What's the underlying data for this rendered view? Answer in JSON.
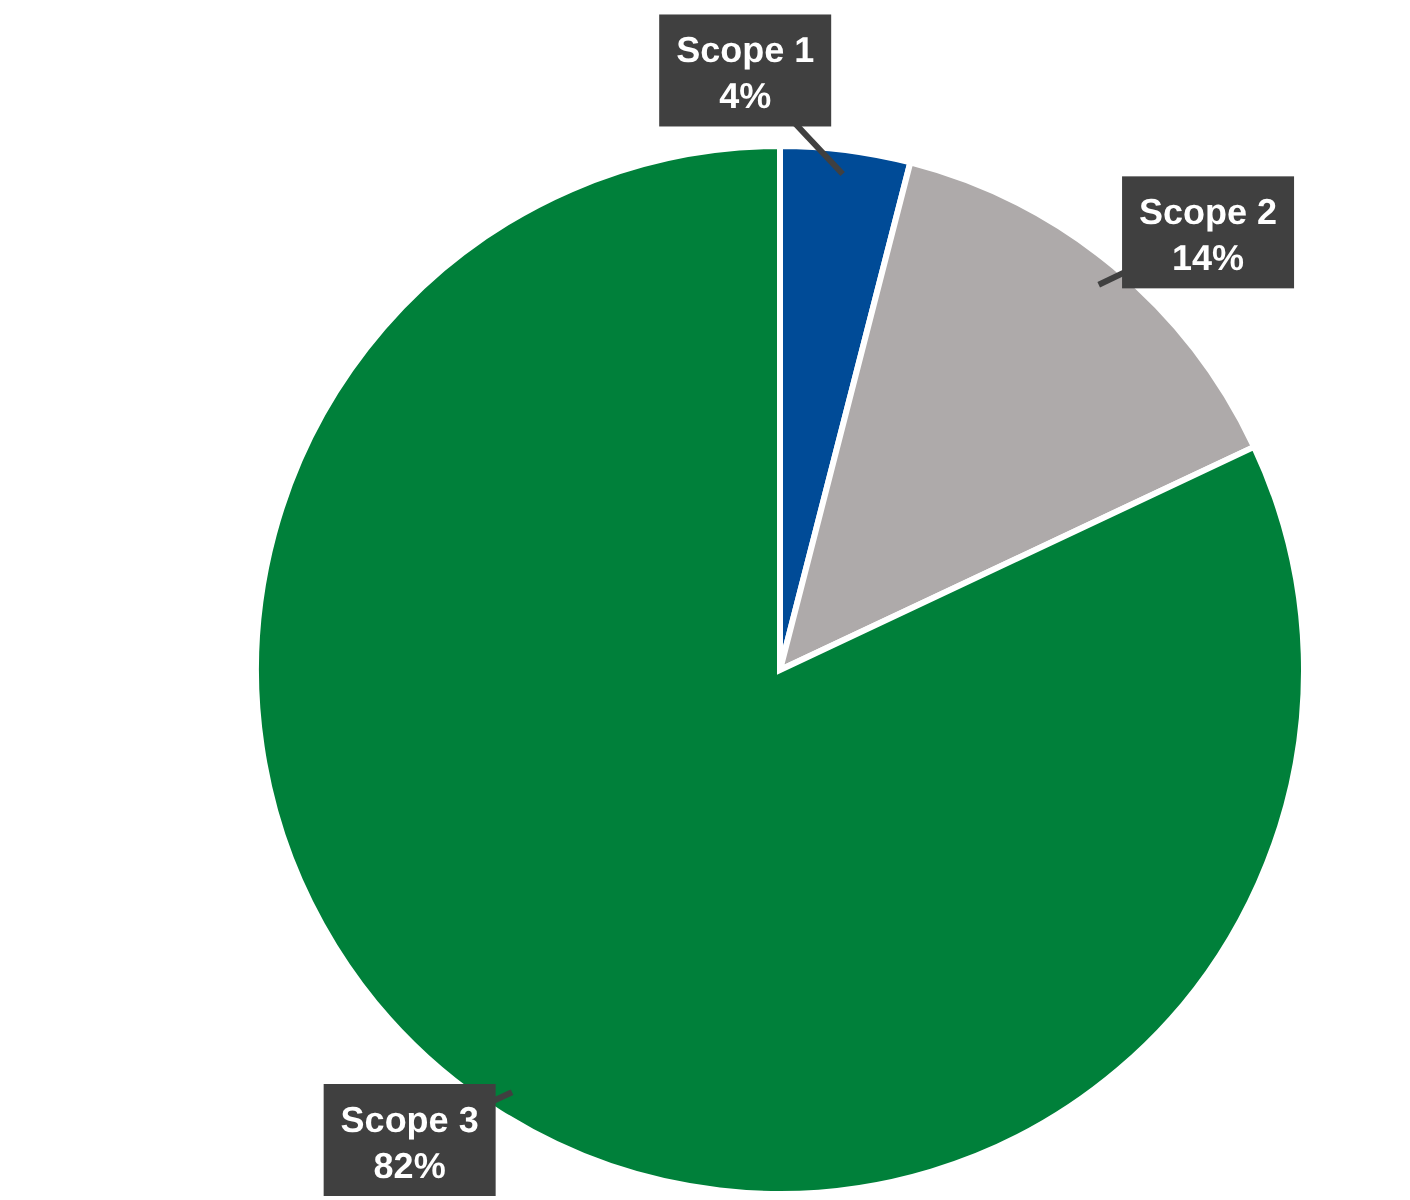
{
  "chart_data": {
    "type": "pie",
    "categories": [
      "Scope 1",
      "Scope 2",
      "Scope 3"
    ],
    "values": [
      4,
      14,
      82
    ],
    "colors": [
      "#004b97",
      "#aeaaaa",
      "#00803a"
    ],
    "value_labels": [
      "4%",
      "14%",
      "82%"
    ]
  }
}
